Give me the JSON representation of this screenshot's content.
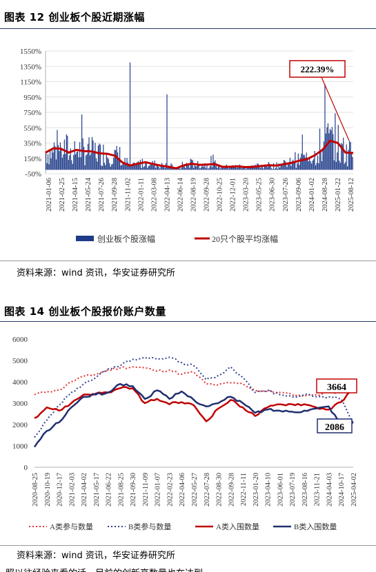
{
  "figure1": {
    "title": "图表 12 创业板个股近期涨幅",
    "source": "资料来源：wind 资讯，华安证券研究所",
    "callout": "222.39%"
  },
  "figure2": {
    "title": "图表 14 创业板个股报价账户数量",
    "source": "资料来源：wind 资讯，华安证券研究所",
    "callout_a": "3664",
    "callout_b": "2086"
  },
  "trailing_text": "照以往经验来看的话，目前的创新高数量也在达到",
  "chart_data": [
    {
      "type": "bar",
      "ylim": [
        -50,
        1550
      ],
      "yticks": [
        "-50%",
        "150%",
        "350%",
        "550%",
        "750%",
        "950%",
        "1150%",
        "1350%",
        "1550%"
      ],
      "x_tick_labels": [
        "2021-01-06",
        "2021-02-25",
        "2021-04-15",
        "2021-05-24",
        "2021-07-26",
        "2021-09-28",
        "2021-11-02",
        "2022-01-11",
        "2022-03-08",
        "2022-04-13",
        "2022-06-14",
        "2022-08-19",
        "2022-09-28",
        "2022-10-25",
        "2022-12-01",
        "2023-03-20",
        "2023-05-25",
        "2023-06-30",
        "2023-07-26",
        "2023-09-06",
        "2024-01-02",
        "2024-08-28",
        "2025-01-22",
        "2025-08-12"
      ],
      "legend": [
        "创业板个股涨幅",
        "20只个股平均涨幅"
      ],
      "series": [
        {
          "name": "20只个股平均涨幅",
          "type": "line",
          "values": [
            225,
            280,
            275,
            225,
            260,
            245,
            240,
            215,
            210,
            185,
            95,
            55,
            80,
            100,
            75,
            55,
            40,
            20,
            60,
            80,
            65,
            70,
            75,
            40,
            40,
            45,
            35,
            40,
            50,
            60,
            55,
            75,
            90,
            120,
            140,
            190,
            260,
            380,
            350,
            225,
            220
          ]
        },
        {
          "name": "创业板个股涨幅",
          "type": "bar",
          "peaks": [
            1400,
            985,
            1120,
            460,
            420
          ]
        }
      ]
    },
    {
      "type": "line",
      "ylim": [
        0,
        6000
      ],
      "yticks": [
        "0",
        "1000",
        "2000",
        "3000",
        "4000",
        "5000",
        "6000"
      ],
      "x_tick_labels": [
        "2020-08-25",
        "2020-10-19",
        "2020-12-17",
        "2021-02-03",
        "2021-04-02",
        "2021-05-17",
        "2021-06-22",
        "2021-08-25",
        "2021-09-30",
        "2021-11-09",
        "2022-01-07",
        "2022-02-23",
        "2022-04-06",
        "2022-05-27",
        "2022-07-28",
        "2022-08-30",
        "2022-09-28",
        "2022-11-11",
        "2023-01-20",
        "2023-04-10",
        "2023-06-01",
        "2023-07-19",
        "2023-08-16",
        "2023-11-21",
        "2024-04-03",
        "2024-10-17",
        "2025-04-02"
      ],
      "legend": [
        "A类参与数量",
        "B类参与数量",
        "A类入围数量",
        "B类入围数量"
      ],
      "series": [
        {
          "name": "A类参与数量",
          "values": [
            3400,
            3550,
            3600,
            4000,
            4250,
            4350,
            4550,
            4650,
            4700,
            4650,
            4500,
            4550,
            4350,
            4450,
            3900,
            3850,
            3950,
            3900,
            3600,
            3550,
            3500,
            3400,
            3350,
            3400,
            3500,
            3550,
            3664
          ]
        },
        {
          "name": "B类参与数量",
          "values": [
            1400,
            2200,
            2900,
            3500,
            3900,
            4200,
            4600,
            4750,
            5050,
            5150,
            5050,
            5150,
            4900,
            4750,
            4100,
            4300,
            4700,
            4200,
            3500,
            3600,
            3400,
            3300,
            3400,
            3300,
            3300,
            3200,
            2086
          ]
        },
        {
          "name": "A类入围数量",
          "values": [
            2300,
            2800,
            2650,
            3000,
            3400,
            3450,
            3500,
            3700,
            3700,
            3000,
            3200,
            2950,
            3050,
            2900,
            2150,
            2750,
            3150,
            2800,
            2400,
            2800,
            2950,
            2950,
            2950,
            2800,
            2700,
            3050,
            3664
          ]
        },
        {
          "name": "B类入围数量",
          "values": [
            950,
            1700,
            2100,
            2800,
            3300,
            3400,
            3500,
            3900,
            3800,
            3200,
            3600,
            3200,
            3550,
            3150,
            2850,
            3000,
            3300,
            3000,
            2550,
            2700,
            2650,
            2600,
            2650,
            2750,
            2850,
            2000,
            2086
          ]
        }
      ]
    }
  ]
}
